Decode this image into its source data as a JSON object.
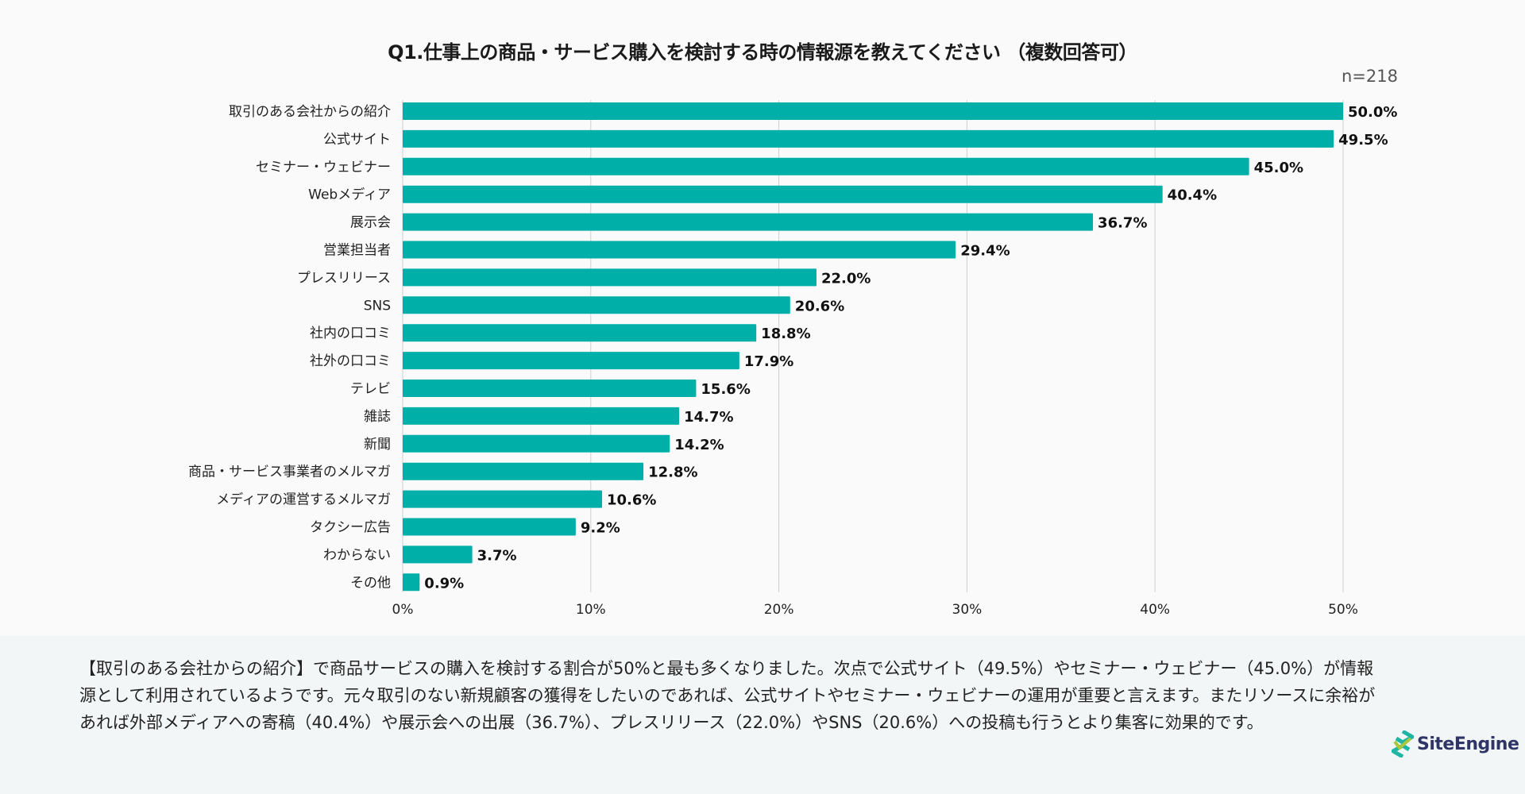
{
  "chart_data": {
    "type": "bar",
    "orientation": "horizontal",
    "title": "Q1.仕事上の商品・サービス購入を検討する時の情報源を教えてください （複数回答可）",
    "sample_size": "n=218",
    "categories": [
      "取引のある会社からの紹介",
      "公式サイト",
      "セミナー・ウェビナー",
      "Webメディア",
      "展示会",
      "営業担当者",
      "プレスリリース",
      "SNS",
      "社内の口コミ",
      "社外の口コミ",
      "テレビ",
      "雑誌",
      "新聞",
      "商品・サービス事業者のメルマガ",
      "メディアの運営するメルマガ",
      "タクシー広告",
      "わからない",
      "その他"
    ],
    "values": [
      50.0,
      49.5,
      45.0,
      40.4,
      36.7,
      29.4,
      22.0,
      20.6,
      18.8,
      17.9,
      15.6,
      14.7,
      14.2,
      12.8,
      10.6,
      9.2,
      3.7,
      0.9
    ],
    "value_labels": [
      "50.0%",
      "49.5%",
      "45.0%",
      "40.4%",
      "36.7%",
      "29.4%",
      "22.0%",
      "20.6%",
      "18.8%",
      "17.9%",
      "15.6%",
      "14.7%",
      "14.2%",
      "12.8%",
      "10.6%",
      "9.2%",
      "3.7%",
      "0.9%"
    ],
    "xlabel": "",
    "ylabel": "",
    "xlim": [
      0,
      50
    ],
    "x_ticks": [
      0,
      10,
      20,
      30,
      40,
      50
    ],
    "x_tick_labels": [
      "0%",
      "10%",
      "20%",
      "30%",
      "40%",
      "50%"
    ],
    "grid": true,
    "bar_color": "#00b0a8"
  },
  "summary": {
    "text": "【取引のある会社からの紹介】で商品サービスの購入を検討する割合が50%と最も多くなりました。次点で公式サイト（49.5%）やセミナー・ウェビナー（45.0%）が情報源として利用されているようです。元々取引のない新規顧客の獲得をしたいのであれば、公式サイトやセミナー・ウェビナーの運用が重要と言えます。またリソースに余裕があれば外部メディアへの寄稿（40.4%）や展示会への出展（36.7%）、プレスリリース（22.0%）やSNS（20.6%）への投稿も行うとより集客に効果的です。"
  },
  "logo": {
    "text": "SiteEngine",
    "colors": [
      "#1fb5a5",
      "#a8c83a",
      "#2f3566"
    ]
  }
}
